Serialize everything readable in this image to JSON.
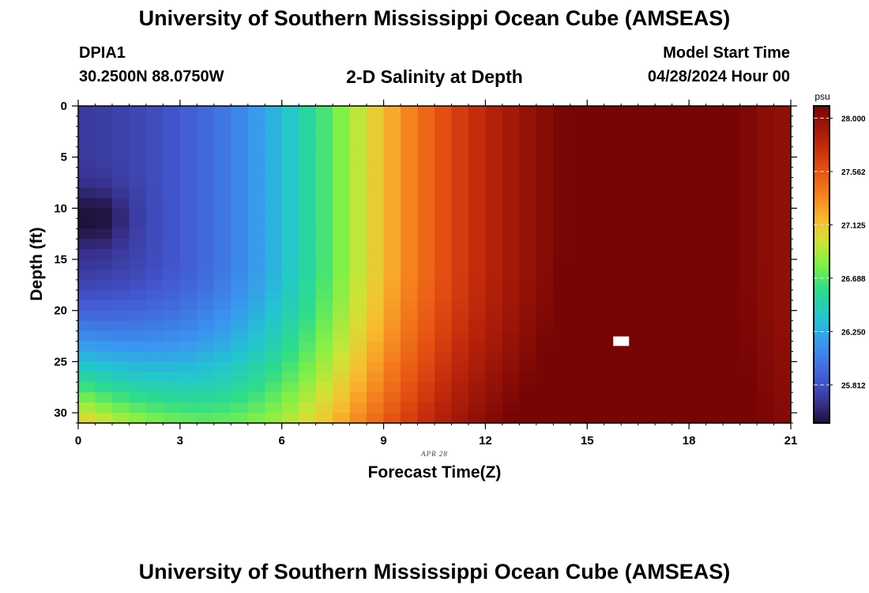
{
  "header": {
    "title": "University of Southern Mississippi Ocean Cube (AMSEAS)",
    "station": "DPIA1",
    "coords": "30.2500N  88.0750W",
    "subtitle": "2-D Salinity at Depth",
    "model_start_label": "Model Start Time",
    "model_start_value": "04/28/2024 Hour 00"
  },
  "footer": {
    "title": "University of Southern Mississippi Ocean Cube (AMSEAS)"
  },
  "chart_data": {
    "type": "heatmap",
    "title": "2-D Salinity at Depth",
    "xlabel": "Forecast Time(Z)",
    "ylabel": "Depth (ft)",
    "date_label": "APR 28",
    "x_ticks": [
      "0",
      "3",
      "6",
      "9",
      "12",
      "15",
      "18",
      "21"
    ],
    "xlim": [
      0,
      21
    ],
    "y_ticks": [
      "0",
      "5",
      "10",
      "15",
      "20",
      "25",
      "30"
    ],
    "ylim": [
      0,
      31
    ],
    "colorbar": {
      "unit": "psu",
      "min": 25.5,
      "max": 28.1,
      "ticks": [
        "28.000",
        "27.562",
        "27.125",
        "26.688",
        "26.250",
        "25.812"
      ]
    },
    "value_estimates": {
      "hour0_depth0": 25.7,
      "hour0_depth11": 25.5,
      "hour0_depth30": 27.45,
      "hour6_depth0": 26.15,
      "hour12_depth0": 27.5,
      "hour16_depth15": 28.1,
      "hour21_depth30": 27.85
    },
    "missing_cell": {
      "hour": 16,
      "depth": 23
    }
  },
  "colors": {
    "background": "#ffffff",
    "missing": "#ffffff"
  }
}
